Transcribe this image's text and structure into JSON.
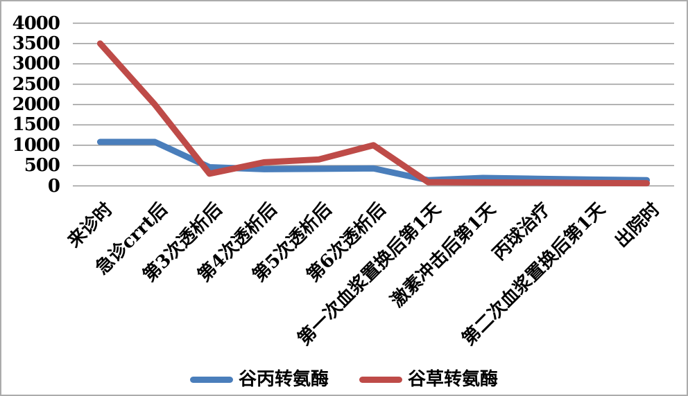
{
  "chart_data": {
    "type": "line",
    "title": "",
    "xlabel": "",
    "ylabel": "",
    "categories": [
      "来诊时",
      "急诊crrt后",
      "第3次透析后",
      "第4次透析后",
      "第5次透析后",
      "第6次透析后",
      "第一次血浆置换后第1天",
      "激素冲击后第1天",
      "丙球治疗",
      "第二次血浆置换后第1天",
      "出院时"
    ],
    "series": [
      {
        "name": "谷丙转氨酶",
        "color": "#4A7EBB",
        "values": [
          1080,
          1080,
          460,
          410,
          420,
          430,
          140,
          195,
          175,
          155,
          140
        ]
      },
      {
        "name": "谷草转氨酶",
        "color": "#BE4B48",
        "values": [
          3500,
          2000,
          300,
          580,
          650,
          1000,
          90,
          85,
          80,
          70,
          65
        ]
      }
    ],
    "ylim": [
      0,
      4000
    ],
    "ytick_step": 500,
    "ytick_labels": [
      "4000",
      "3500",
      "3000",
      "2500",
      "2000",
      "1500",
      "1000",
      "500",
      "0"
    ],
    "grid": true,
    "gridline_color": "#9A9A9A",
    "legend_position": "bottom",
    "line_width": 9
  }
}
